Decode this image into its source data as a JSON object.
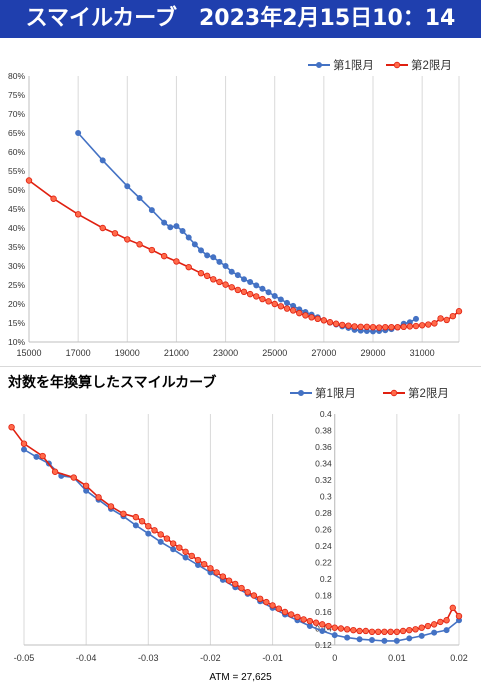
{
  "header": {
    "title": "スマイルカーブ　2023年2月15日10：14"
  },
  "section2": {
    "title": "対数を年換算したスマイルカーブ"
  },
  "atm_label": "ATM = 27,625",
  "colors": {
    "header_bg": "#1f3fae",
    "series1": "#4472c4",
    "series2": "#e02010",
    "series2_marker_fill": "#ff6a4a",
    "grid": "#d9d9d9"
  },
  "chart_data": [
    {
      "type": "line",
      "title": "",
      "xlim": [
        15000,
        32500
      ],
      "ylim": [
        0.1,
        0.8
      ],
      "x_ticks": [
        15000,
        17000,
        19000,
        21000,
        23000,
        25000,
        27000,
        29000,
        31000
      ],
      "x_tick_labels": [
        "15000",
        "17000",
        "19000",
        "21000",
        "23000",
        "25000",
        "27000",
        "29000",
        "31000"
      ],
      "y_ticks": [
        0.1,
        0.15,
        0.2,
        0.25,
        0.3,
        0.35,
        0.4,
        0.45,
        0.5,
        0.55,
        0.6,
        0.65,
        0.7,
        0.75,
        0.8
      ],
      "y_tick_labels": [
        "10%",
        "15%",
        "20%",
        "25%",
        "30%",
        "35%",
        "40%",
        "45%",
        "50%",
        "55%",
        "60%",
        "65%",
        "70%",
        "75%",
        "80%"
      ],
      "grid": "vertical",
      "legend": "top-right",
      "series": [
        {
          "name": "第1限月",
          "x": [
            17000,
            18000,
            19000,
            19500,
            20000,
            20500,
            20750,
            21000,
            21250,
            21500,
            21750,
            22000,
            22250,
            22500,
            22750,
            23000,
            23250,
            23500,
            23750,
            24000,
            24250,
            24500,
            24750,
            25000,
            25250,
            25500,
            25750,
            26000,
            26250,
            26500,
            26750,
            27000,
            27250,
            27500,
            27750,
            28000,
            28250,
            28500,
            28750,
            29000,
            29250,
            29500,
            29750,
            30000,
            30250,
            30500,
            30750
          ],
          "y": [
            0.65,
            0.578,
            0.51,
            0.479,
            0.447,
            0.414,
            0.402,
            0.405,
            0.392,
            0.375,
            0.357,
            0.341,
            0.328,
            0.323,
            0.311,
            0.3,
            0.285,
            0.276,
            0.265,
            0.258,
            0.249,
            0.24,
            0.231,
            0.221,
            0.212,
            0.203,
            0.195,
            0.186,
            0.179,
            0.172,
            0.165,
            0.157,
            0.151,
            0.146,
            0.141,
            0.137,
            0.132,
            0.13,
            0.129,
            0.128,
            0.129,
            0.131,
            0.134,
            0.138,
            0.148,
            0.152,
            0.161
          ]
        },
        {
          "name": "第2限月",
          "x": [
            15000,
            16000,
            17000,
            18000,
            18500,
            19000,
            19500,
            20000,
            20500,
            21000,
            21500,
            22000,
            22250,
            22500,
            22750,
            23000,
            23250,
            23500,
            23750,
            24000,
            24250,
            24500,
            24750,
            25000,
            25250,
            25500,
            25750,
            26000,
            26250,
            26500,
            26750,
            27000,
            27250,
            27500,
            27750,
            28000,
            28250,
            28500,
            28750,
            29000,
            29250,
            29500,
            29750,
            30000,
            30250,
            30500,
            30750,
            31000,
            31250,
            31500,
            31750,
            32000,
            32250,
            32500
          ],
          "y": [
            0.525,
            0.477,
            0.436,
            0.4,
            0.386,
            0.37,
            0.357,
            0.342,
            0.326,
            0.312,
            0.297,
            0.281,
            0.274,
            0.265,
            0.258,
            0.251,
            0.244,
            0.237,
            0.232,
            0.226,
            0.22,
            0.213,
            0.207,
            0.2,
            0.194,
            0.188,
            0.183,
            0.176,
            0.17,
            0.165,
            0.161,
            0.157,
            0.152,
            0.148,
            0.145,
            0.143,
            0.141,
            0.14,
            0.14,
            0.139,
            0.138,
            0.139,
            0.139,
            0.139,
            0.14,
            0.141,
            0.142,
            0.144,
            0.146,
            0.149,
            0.162,
            0.158,
            0.168,
            0.181
          ]
        }
      ]
    },
    {
      "type": "line",
      "title": "",
      "xlim": [
        -0.05,
        0.02
      ],
      "ylim": [
        0.12,
        0.4
      ],
      "x_ticks": [
        -0.05,
        -0.04,
        -0.03,
        -0.02,
        -0.01,
        0,
        0.01,
        0.02
      ],
      "x_tick_labels": [
        "-0.05",
        "-0.04",
        "-0.03",
        "-0.02",
        "-0.01",
        "0",
        "0.01",
        "0.02"
      ],
      "y_ticks": [
        0.12,
        0.14,
        0.16,
        0.18,
        0.2,
        0.22,
        0.24,
        0.26,
        0.28,
        0.3,
        0.32,
        0.34,
        0.36,
        0.38,
        0.4
      ],
      "y_tick_labels": [
        "0.12",
        "0.14",
        "0.16",
        "0.18",
        "0.2",
        "0.22",
        "0.24",
        "0.26",
        "0.28",
        "0.3",
        "0.32",
        "0.34",
        "0.36",
        "0.38",
        "0.4"
      ],
      "y_axis_at_x": 0,
      "grid": "vertical",
      "legend": "top-right",
      "series": [
        {
          "name": "第1限月",
          "x": [
            -0.05,
            -0.048,
            -0.046,
            -0.044,
            -0.042,
            -0.04,
            -0.038,
            -0.036,
            -0.034,
            -0.032,
            -0.03,
            -0.028,
            -0.026,
            -0.024,
            -0.022,
            -0.02,
            -0.018,
            -0.016,
            -0.014,
            -0.012,
            -0.01,
            -0.008,
            -0.006,
            -0.004,
            -0.002,
            0.0,
            0.002,
            0.004,
            0.006,
            0.008,
            0.01,
            0.012,
            0.014,
            0.016,
            0.018,
            0.02
          ],
          "y": [
            0.357,
            0.348,
            0.34,
            0.325,
            0.323,
            0.307,
            0.296,
            0.285,
            0.276,
            0.265,
            0.255,
            0.245,
            0.236,
            0.226,
            0.217,
            0.208,
            0.199,
            0.19,
            0.182,
            0.173,
            0.165,
            0.157,
            0.15,
            0.143,
            0.137,
            0.132,
            0.129,
            0.127,
            0.126,
            0.125,
            0.125,
            0.128,
            0.131,
            0.135,
            0.138,
            0.15
          ]
        },
        {
          "name": "第2限月",
          "x": [
            -0.052,
            -0.05,
            -0.047,
            -0.045,
            -0.042,
            -0.04,
            -0.038,
            -0.036,
            -0.034,
            -0.032,
            -0.031,
            -0.03,
            -0.029,
            -0.028,
            -0.027,
            -0.026,
            -0.025,
            -0.024,
            -0.023,
            -0.022,
            -0.021,
            -0.02,
            -0.019,
            -0.018,
            -0.017,
            -0.016,
            -0.015,
            -0.014,
            -0.013,
            -0.012,
            -0.011,
            -0.01,
            -0.009,
            -0.008,
            -0.007,
            -0.006,
            -0.005,
            -0.004,
            -0.003,
            -0.002,
            -0.001,
            0.0,
            0.001,
            0.002,
            0.003,
            0.004,
            0.005,
            0.006,
            0.007,
            0.008,
            0.009,
            0.01,
            0.011,
            0.012,
            0.013,
            0.014,
            0.015,
            0.016,
            0.017,
            0.018,
            0.019,
            0.02
          ],
          "y": [
            0.384,
            0.364,
            0.349,
            0.33,
            0.323,
            0.313,
            0.299,
            0.288,
            0.279,
            0.275,
            0.27,
            0.264,
            0.259,
            0.254,
            0.249,
            0.243,
            0.238,
            0.233,
            0.228,
            0.223,
            0.218,
            0.213,
            0.208,
            0.203,
            0.198,
            0.194,
            0.189,
            0.184,
            0.18,
            0.176,
            0.172,
            0.168,
            0.164,
            0.16,
            0.157,
            0.154,
            0.151,
            0.149,
            0.147,
            0.145,
            0.143,
            0.141,
            0.14,
            0.139,
            0.138,
            0.137,
            0.137,
            0.136,
            0.136,
            0.136,
            0.136,
            0.136,
            0.137,
            0.138,
            0.139,
            0.141,
            0.143,
            0.145,
            0.148,
            0.15,
            0.165,
            0.155
          ]
        }
      ]
    }
  ]
}
